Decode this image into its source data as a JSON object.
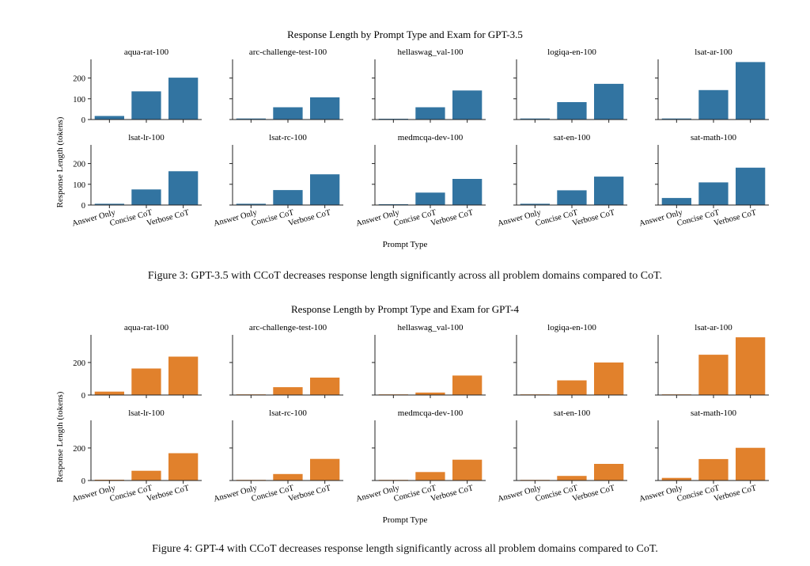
{
  "captions": {
    "fig3": "Figure 3: GPT-3.5 with CCoT decreases response length significantly across all problem domains compared to CoT.",
    "fig4": "Figure 4: GPT-4 with CCoT decreases response length significantly across all problem domains compared to CoT."
  },
  "chart_data": [
    {
      "type": "bar",
      "title": "Response Length by Prompt Type and Exam for GPT-3.5",
      "xlabel": "Prompt Type",
      "ylabel": "Response Length (tokens)",
      "color": "#3274a1",
      "categories": [
        "Answer Only",
        "Concise CoT",
        "Verbose CoT"
      ],
      "ylim": [
        0,
        290
      ],
      "yticks": [
        0,
        100,
        200
      ],
      "panels": [
        {
          "title": "aqua-rat-100",
          "values": [
            17,
            136,
            202
          ]
        },
        {
          "title": "arc-challenge-test-100",
          "values": [
            5,
            59,
            107
          ]
        },
        {
          "title": "hellaswag_val-100",
          "values": [
            4,
            59,
            140
          ]
        },
        {
          "title": "logiqa-en-100",
          "values": [
            5,
            84,
            172
          ]
        },
        {
          "title": "lsat-ar-100",
          "values": [
            5,
            142,
            277
          ]
        },
        {
          "title": "lsat-lr-100",
          "values": [
            6,
            75,
            163
          ]
        },
        {
          "title": "lsat-rc-100",
          "values": [
            6,
            72,
            148
          ]
        },
        {
          "title": "medmcqa-dev-100",
          "values": [
            4,
            60,
            126
          ]
        },
        {
          "title": "sat-en-100",
          "values": [
            6,
            71,
            137
          ]
        },
        {
          "title": "sat-math-100",
          "values": [
            34,
            109,
            180
          ]
        }
      ]
    },
    {
      "type": "bar",
      "title": "Response Length by Prompt Type and Exam for GPT-4",
      "xlabel": "Prompt Type",
      "ylabel": "Response Length (tokens)",
      "color": "#e1812c",
      "categories": [
        "Answer Only",
        "Concise CoT",
        "Verbose CoT"
      ],
      "ylim": [
        0,
        370
      ],
      "yticks": [
        0,
        200
      ],
      "panels": [
        {
          "title": "aqua-rat-100",
          "values": [
            21,
            163,
            236
          ]
        },
        {
          "title": "arc-challenge-test-100",
          "values": [
            4,
            48,
            107
          ]
        },
        {
          "title": "hellaswag_val-100",
          "values": [
            4,
            15,
            120
          ]
        },
        {
          "title": "logiqa-en-100",
          "values": [
            4,
            90,
            200
          ]
        },
        {
          "title": "lsat-ar-100",
          "values": [
            4,
            248,
            355
          ]
        },
        {
          "title": "lsat-lr-100",
          "values": [
            5,
            60,
            168
          ]
        },
        {
          "title": "lsat-rc-100",
          "values": [
            4,
            40,
            133
          ]
        },
        {
          "title": "medmcqa-dev-100",
          "values": [
            4,
            52,
            128
          ]
        },
        {
          "title": "sat-en-100",
          "values": [
            4,
            28,
            102
          ]
        },
        {
          "title": "sat-math-100",
          "values": [
            16,
            132,
            201
          ]
        }
      ]
    }
  ]
}
